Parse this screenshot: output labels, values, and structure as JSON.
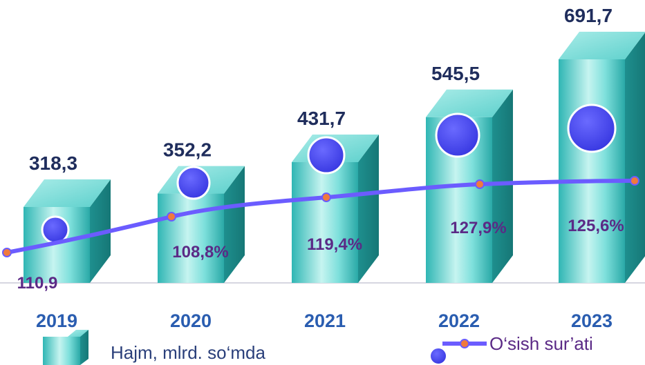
{
  "chart_data": {
    "type": "bar",
    "categories": [
      "2019",
      "2020",
      "2021",
      "2022",
      "2023"
    ],
    "series": [
      {
        "name": "Hajm, mlrd. so‘mda",
        "values": [
          318.3,
          352.2,
          431.7,
          545.5,
          691.7
        ],
        "labels": [
          "318,3",
          "352,2",
          "431,7",
          "545,5",
          "691,7"
        ],
        "color": "#3cc3c0"
      },
      {
        "name": "O‘sish sur’ati",
        "type": "line",
        "values": [
          110.9,
          108.8,
          119.4,
          127.9,
          125.6
        ],
        "labels": [
          "110,9",
          "108,8%",
          "119,4%",
          "127,9%",
          "125,6%"
        ],
        "color": "#6b5cff"
      }
    ],
    "legend": "bottom",
    "grid": false,
    "colors": {
      "value_label": "#1f2d5c",
      "year_label": "#2a5db0",
      "pct_label": "#5b2a86",
      "line": "#6b5cff",
      "marker": "#f07a3c",
      "bubble": "#4a4af0"
    }
  }
}
